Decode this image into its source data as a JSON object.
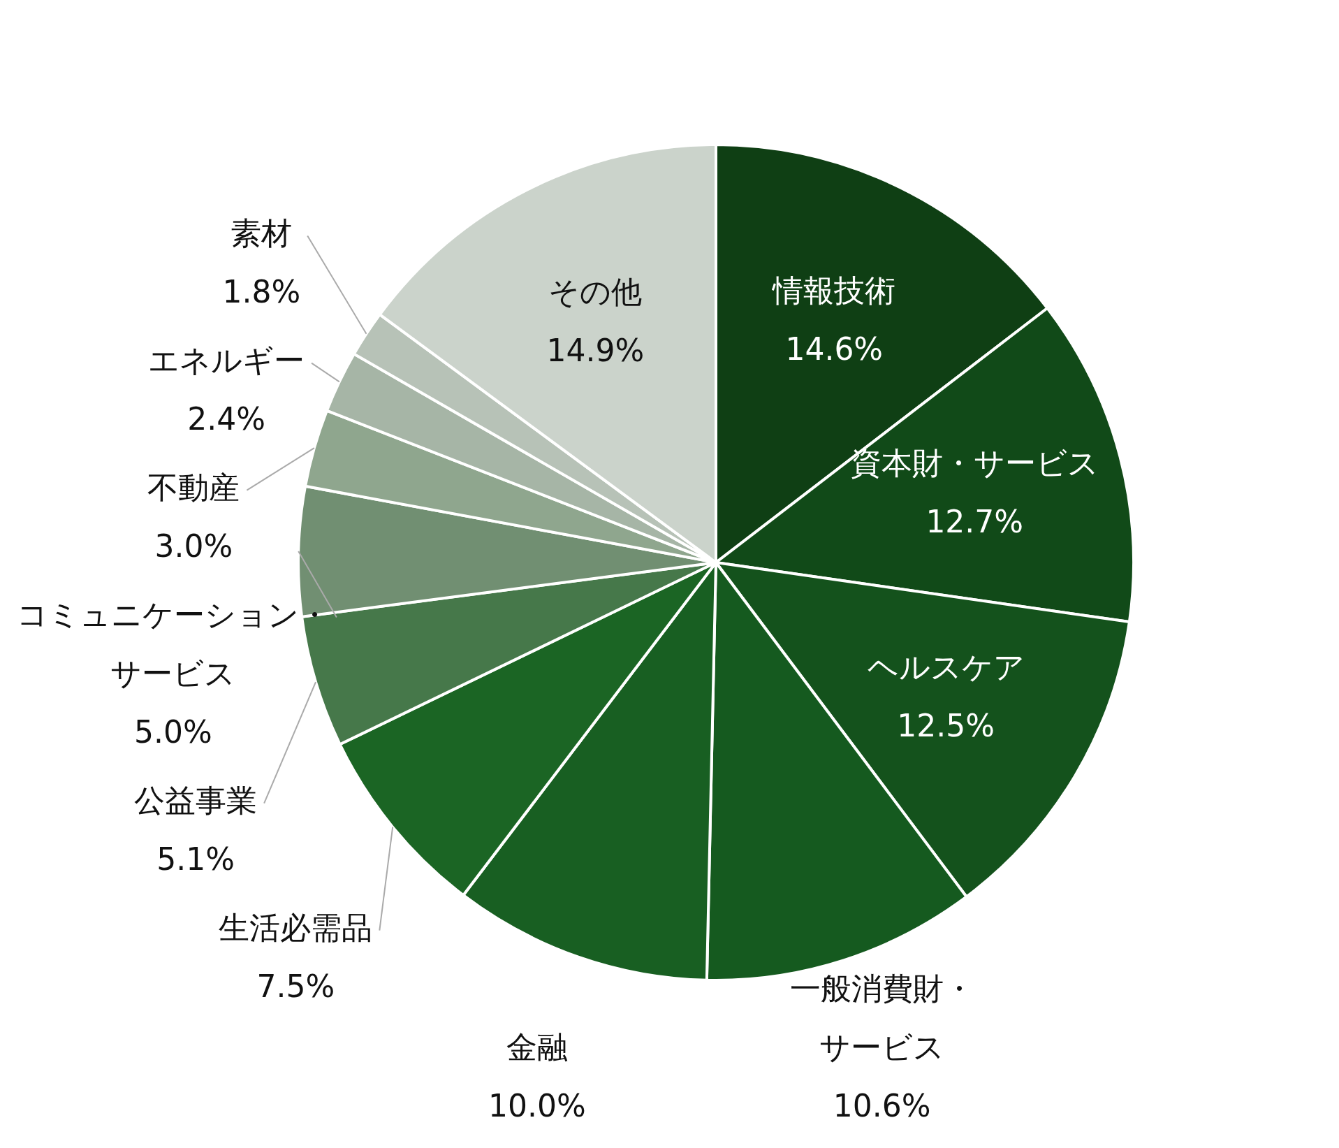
{
  "chart_data": {
    "type": "pie",
    "categories": [
      "情報技術",
      "資本財・サービス",
      "ヘルスケア",
      "一般消費財・サービス",
      "金融",
      "生活必需品",
      "公益事業",
      "コミュニケーション・サービス",
      "不動産",
      "エネルギー",
      "素材",
      "その他"
    ],
    "values": [
      14.6,
      12.7,
      12.5,
      10.6,
      10.0,
      7.5,
      5.1,
      5.0,
      3.0,
      2.4,
      1.8,
      14.9
    ],
    "value_labels": [
      "14.6%",
      "12.7%",
      "12.5%",
      "10.6%",
      "10.0%",
      "7.5%",
      "5.1%",
      "5.0%",
      "3.0%",
      "2.4%",
      "1.8%",
      "14.9%"
    ],
    "colors": [
      "#0f3f14",
      "#114a18",
      "#14521c",
      "#155a1f",
      "#185f22",
      "#1b6524",
      "#46784a",
      "#718f72",
      "#8fa68e",
      "#a6b5a6",
      "#b7c2b7",
      "#cbd3cb"
    ]
  }
}
